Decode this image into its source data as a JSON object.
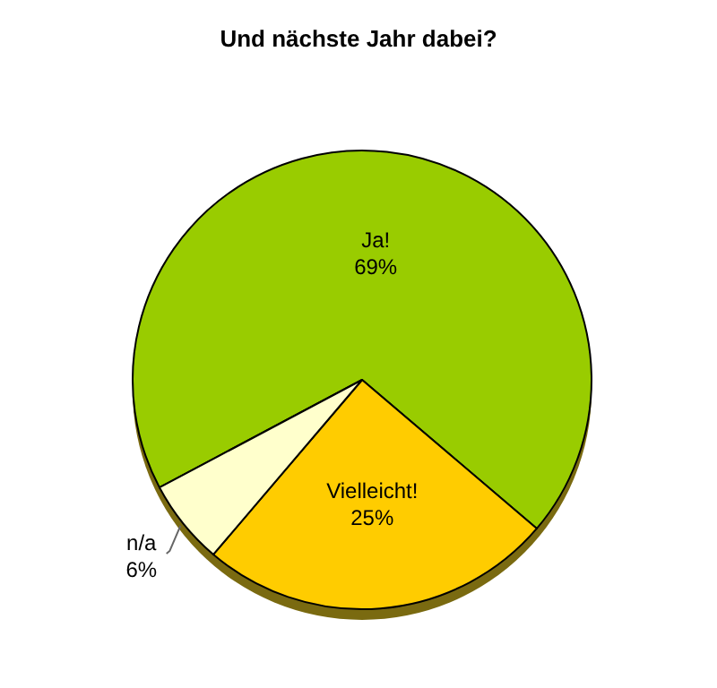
{
  "chart_data": {
    "type": "pie",
    "title": "Und nächste Jahr dabei?",
    "categories": [
      "Ja!",
      "Vielleicht!",
      "n/a"
    ],
    "values": [
      69,
      25,
      6
    ],
    "value_labels": [
      "69%",
      "25%",
      "6%"
    ],
    "colors": [
      "#99cc00",
      "#ffcc00",
      "#ffffcc"
    ],
    "legend": false
  }
}
